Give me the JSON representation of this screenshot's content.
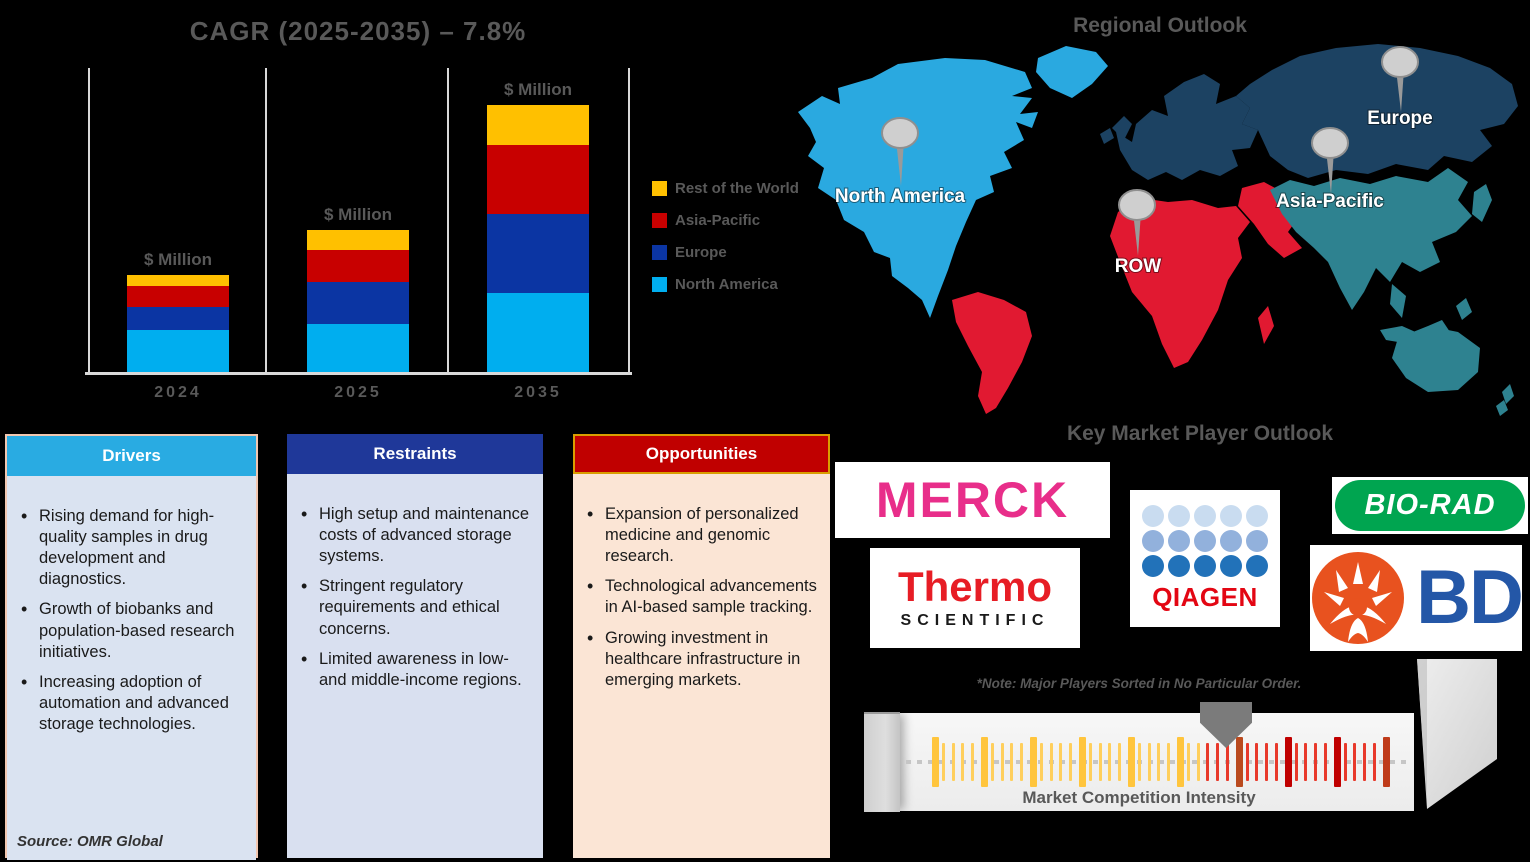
{
  "chart_data": {
    "type": "bar",
    "stacked": true,
    "title": "CAGR (2025-2035) – 7.8%",
    "categories": [
      "2024",
      "2025",
      "2035"
    ],
    "bar_value_label": "$ Million",
    "units": "relative bar-segment heights in px (chart shows no numeric axis; each bar is labeled '$ Million')",
    "series": [
      {
        "name": "North America",
        "color": "#00AEEF",
        "values": [
          42,
          48,
          79
        ]
      },
      {
        "name": "Europe",
        "color": "#0B35A3",
        "values": [
          23,
          42,
          79
        ]
      },
      {
        "name": "Asia-Pacific",
        "color": "#C80000",
        "values": [
          21,
          32,
          69
        ]
      },
      {
        "name": "Rest of the World",
        "color": "#FFC000",
        "values": [
          11,
          20,
          40
        ]
      }
    ],
    "legend_order": [
      "Rest of the World",
      "Asia-Pacific",
      "Europe",
      "North America"
    ],
    "legend_position": "right",
    "grid": false
  },
  "map": {
    "title": "Regional Outlook",
    "regions": [
      {
        "id": "north-america",
        "label": "North America",
        "color": "#2AA9E0"
      },
      {
        "id": "row",
        "label": "ROW",
        "color": "#E11931"
      },
      {
        "id": "asia-pacific",
        "label": "Asia-Pacific",
        "color": "#2E8290"
      },
      {
        "id": "europe",
        "label": "Europe",
        "color": "#1C4262"
      }
    ]
  },
  "boxes": {
    "drivers": {
      "title": "Drivers",
      "header_color": "#29ABE2",
      "bullets": [
        "Rising demand for high-quality samples in drug development and diagnostics.",
        "Growth of biobanks and population-based research initiatives.",
        "Increasing adoption of automation and advanced storage technologies."
      ]
    },
    "restraints": {
      "title": "Restraints",
      "header_color": "#1F3899",
      "bullets": [
        "High setup and maintenance costs of advanced storage systems.",
        "Stringent regulatory requirements and ethical concerns.",
        "Limited awareness in low- and middle-income regions."
      ]
    },
    "opportunities": {
      "title": "Opportunities",
      "header_color": "#C00000",
      "bullets": [
        "Expansion of personalized medicine and genomic research.",
        "Technological advancements in AI-based sample tracking.",
        "Growing investment in healthcare infrastructure in emerging markets."
      ]
    }
  },
  "source_note": "Source: OMR Global",
  "players": {
    "title": "Key Market Player Outlook",
    "note": "*Note: Major Players Sorted in No Particular Order.",
    "logos": {
      "merck": {
        "text": "MERCK",
        "color": "#E82E8A"
      },
      "thermo": {
        "line1": "Thermo",
        "line2": "SCIENTIFIC",
        "color1": "#E71D25",
        "color2": "#1A1A1A"
      },
      "qiagen": {
        "text": "QIAGEN",
        "color": "#E30613",
        "dot_rows": [
          "#C9DCF0",
          "#92B1DC",
          "#2272B9"
        ]
      },
      "biorad": {
        "text": "BIO-RAD",
        "bg": "#00A550"
      },
      "bd": {
        "text": "BD",
        "color": "#2457A7",
        "icon_color": "#E8521F"
      }
    }
  },
  "gauge": {
    "label": "Market Competition Intensity",
    "ticks": {
      "count": 47,
      "yellow_count": 28,
      "tall_every": 5,
      "yellow": "#FFCF5C",
      "yellow_tall": "#FFC53D",
      "red": "#E8392B",
      "special": {
        "31": "#BA4A1E",
        "36": "#C00000",
        "41": "#C00000",
        "46": "#BF3B1A"
      }
    },
    "pointer_tick_index": 30
  }
}
